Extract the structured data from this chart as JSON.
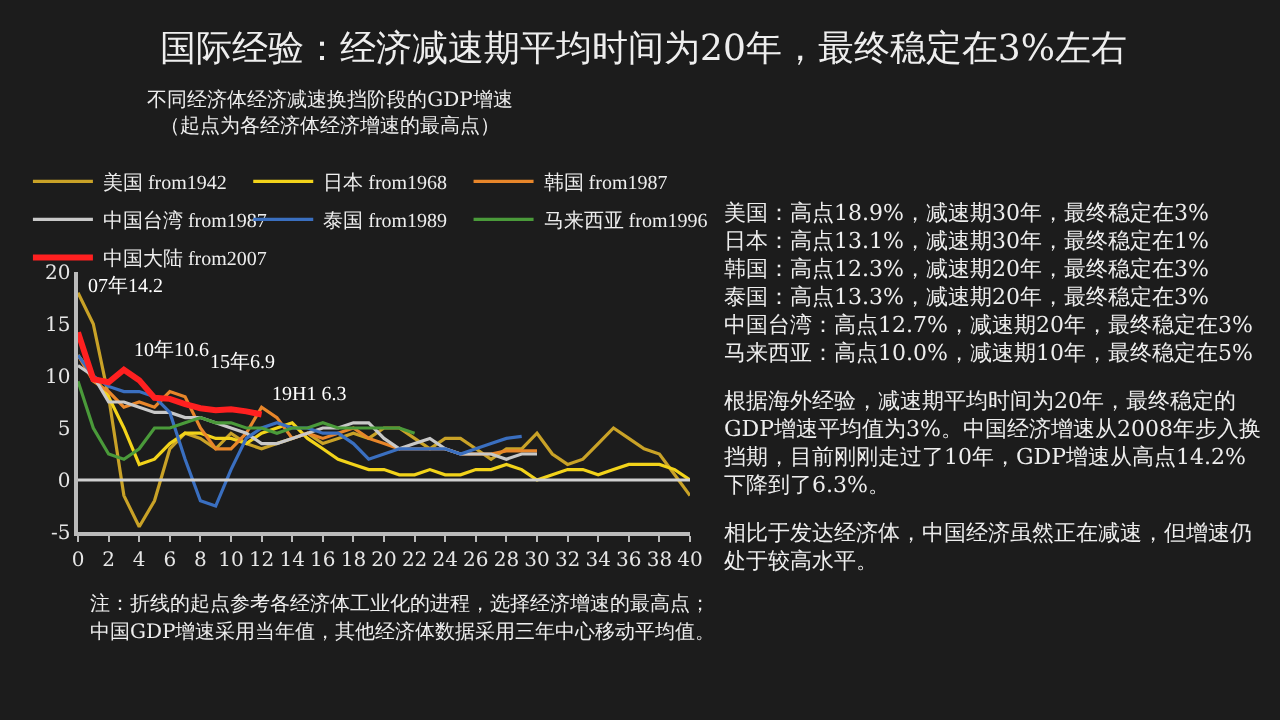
{
  "chart_data": {
    "type": "line",
    "title": "国际经验：经济减速期平均时间为20年，最终稳定在3%左右",
    "subtitle": "不同经济体经济减速换挡阶段的GDP增速",
    "x": [
      0,
      1,
      2,
      3,
      4,
      5,
      6,
      7,
      8,
      9,
      10,
      11,
      12,
      13,
      14,
      15,
      16,
      17,
      18,
      19,
      20,
      21,
      22,
      23,
      24,
      25,
      26,
      27,
      28,
      29,
      30,
      31,
      32,
      33,
      34,
      35,
      36,
      37,
      38,
      39,
      40
    ],
    "series": [
      {
        "name": "美国 from1942",
        "color": "#c9a227",
        "values": [
          18,
          15,
          8,
          -1.5,
          -4.5,
          -2,
          3,
          4.5,
          4,
          3,
          4.5,
          3.5,
          3,
          3.5,
          4,
          4.5,
          3.5,
          4,
          4.5,
          4,
          5,
          5,
          4,
          3,
          4,
          4,
          3,
          2,
          3,
          3,
          4.5,
          2.5,
          1.5,
          2,
          3.5,
          5,
          4,
          3,
          2.5,
          0.5,
          -1.5
        ]
      },
      {
        "name": "日本 from1968",
        "color": "#f2d31a",
        "values": [
          12,
          10,
          8,
          5,
          1.5,
          2,
          3.5,
          4.5,
          4.5,
          4,
          4,
          3.5,
          4.5,
          5,
          5.5,
          4,
          3,
          2,
          1.5,
          1,
          1,
          0.5,
          0.5,
          1,
          0.5,
          0.5,
          1,
          1,
          1.5,
          1,
          0,
          0.5,
          1,
          1,
          0.5,
          1,
          1.5,
          1.5,
          1.5,
          1,
          0
        ]
      },
      {
        "name": "韩国 from1987",
        "color": "#e8862a",
        "values": [
          12,
          9.5,
          8.5,
          7,
          7.5,
          7,
          8.5,
          8,
          5,
          3,
          3,
          4.5,
          7,
          6,
          4,
          4.5,
          4,
          4.5,
          5,
          4,
          3.5,
          3,
          3,
          3,
          3,
          2.5,
          2.5,
          2.5,
          2.8,
          2.8,
          2.8,
          null,
          null,
          null,
          null,
          null,
          null,
          null,
          null,
          null,
          null
        ]
      },
      {
        "name": "中国台湾 from1987",
        "color": "#c8c8c8",
        "values": [
          11,
          10,
          7.5,
          7.5,
          7,
          6.5,
          6.5,
          6,
          6,
          5.5,
          5,
          4.5,
          3.5,
          3.5,
          4,
          4.5,
          5,
          5,
          5.5,
          5.5,
          4,
          3,
          3.5,
          4,
          3,
          2.5,
          2.5,
          2.5,
          2,
          2.5,
          2.5,
          null,
          null,
          null,
          null,
          null,
          null,
          null,
          null,
          null,
          null
        ]
      },
      {
        "name": "泰国 from1989",
        "color": "#3a6fc0",
        "values": [
          12,
          10,
          9,
          8.5,
          8.5,
          8,
          6.5,
          2,
          -2,
          -2.5,
          1,
          4,
          5,
          5.5,
          5,
          5,
          4.5,
          4.5,
          3.5,
          2,
          2.5,
          3,
          3,
          3,
          3,
          2.5,
          3,
          3.5,
          4,
          4.2,
          null,
          null,
          null,
          null,
          null,
          null,
          null,
          null,
          null,
          null,
          null
        ]
      },
      {
        "name": "马来西亚 from1996",
        "color": "#4a9a3a",
        "values": [
          9.5,
          5,
          2.5,
          2,
          3,
          5,
          5,
          5.5,
          6,
          5.5,
          5.5,
          5,
          5,
          4.5,
          5,
          5,
          5.5,
          5,
          5,
          5,
          5,
          5,
          4.5,
          null,
          null,
          null,
          null,
          null,
          null,
          null,
          null,
          null,
          null,
          null,
          null,
          null,
          null,
          null,
          null,
          null,
          null
        ]
      },
      {
        "name": "中国大陆 from2007",
        "color": "#ff2020",
        "values": [
          14.2,
          9.7,
          9.4,
          10.6,
          9.6,
          7.9,
          7.8,
          7.3,
          6.9,
          6.7,
          6.8,
          6.6,
          6.3,
          null,
          null,
          null,
          null,
          null,
          null,
          null,
          null,
          null,
          null,
          null,
          null,
          null,
          null,
          null,
          null,
          null,
          null,
          null,
          null,
          null,
          null,
          null,
          null,
          null,
          null,
          null,
          null
        ]
      }
    ],
    "xlim": [
      0,
      40
    ],
    "xticks": [
      0,
      2,
      4,
      6,
      8,
      10,
      12,
      14,
      16,
      18,
      20,
      22,
      24,
      26,
      28,
      30,
      32,
      34,
      36,
      38,
      40
    ],
    "ylim": [
      -5,
      20
    ],
    "yticks": [
      -5,
      0,
      5,
      10,
      15,
      20
    ],
    "ref_lines": [
      {
        "axis": "y",
        "value": 0,
        "color": "#d0d0d0"
      }
    ],
    "legend": "top",
    "grid": false,
    "marker": "none",
    "line_style": "solid",
    "annotations": [
      {
        "text": "07年14.2",
        "x": 0,
        "y": 14.2
      },
      {
        "text": "10年10.6",
        "x": 3,
        "y": 10.6
      },
      {
        "text": "15年6.9",
        "x": 8,
        "y": 6.9
      },
      {
        "text": "19H1 6.3",
        "x": 12,
        "y": 6.3
      },
      "（起点为各经济体经济增速的最高点）",
      "注：折线的起点参考各经济体工业化的进程，选择经济增速的最高点；",
      "中国GDP增速采用当年值，其他经济体数据采用三年中心移动平均值。",
      "美国：高点18.9%，减速期30年，最终稳定在3%",
      "日本：高点13.1%，减速期30年，最终稳定在1%",
      "韩国：高点12.3%，减速期20年，最终稳定在3%",
      "泰国：高点13.3%，减速期20年，最终稳定在3%",
      "中国台湾：高点12.7%，减速期20年，最终稳定在3%",
      "马来西亚：高点10.0%，减速期10年，最终稳定在5%",
      "根据海外经验，减速期平均时间为20年，最终稳定的GDP增速平均值为3%。中国经济增速从2008年步入换挡期，目前刚刚走过了10年，GDP增速从高点14.2%下降到了6.3%。",
      "相比于发达经济体，中国经济虽然正在减速，但增速仍处于较高水平。"
    ]
  }
}
